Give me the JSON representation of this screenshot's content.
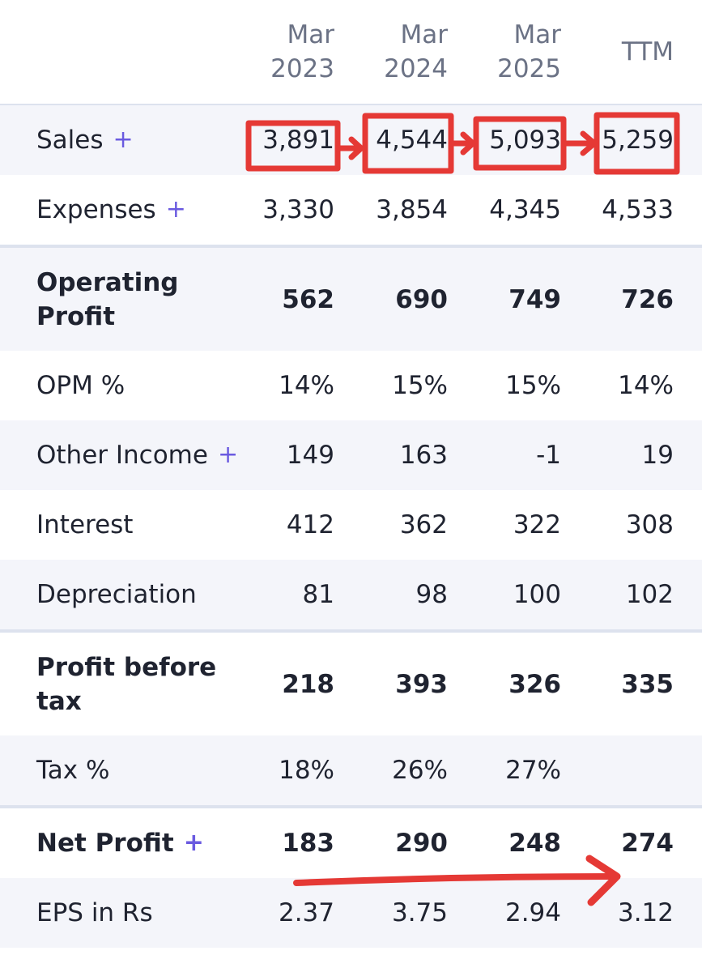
{
  "columns": [
    {
      "line1": "Mar",
      "line2": "2023"
    },
    {
      "line1": "Mar",
      "line2": "2024"
    },
    {
      "line1": "Mar",
      "line2": "2025"
    },
    {
      "line1": "",
      "line2": "TTM"
    }
  ],
  "rows": [
    {
      "label": "Sales",
      "plus": "+",
      "values": [
        "3,891",
        "4,544",
        "5,093",
        "5,259"
      ]
    },
    {
      "label": "Expenses",
      "plus": "+",
      "values": [
        "3,330",
        "3,854",
        "4,345",
        "4,533"
      ]
    },
    {
      "label": "Operating Profit",
      "plus": "",
      "values": [
        "562",
        "690",
        "749",
        "726"
      ]
    },
    {
      "label": "OPM %",
      "plus": "",
      "values": [
        "14%",
        "15%",
        "15%",
        "14%"
      ]
    },
    {
      "label": "Other Income",
      "plus": "+",
      "values": [
        "149",
        "163",
        "-1",
        "19"
      ]
    },
    {
      "label": "Interest",
      "plus": "",
      "values": [
        "412",
        "362",
        "322",
        "308"
      ]
    },
    {
      "label": "Depreciation",
      "plus": "",
      "values": [
        "81",
        "98",
        "100",
        "102"
      ]
    },
    {
      "label": "Profit before tax",
      "plus": "",
      "values": [
        "218",
        "393",
        "326",
        "335"
      ]
    },
    {
      "label": "Tax %",
      "plus": "",
      "values": [
        "18%",
        "26%",
        "27%",
        ""
      ]
    },
    {
      "label": "Net Profit",
      "plus": "+",
      "values": [
        "183",
        "290",
        "248",
        "274"
      ]
    },
    {
      "label": "EPS in Rs",
      "plus": "",
      "values": [
        "2.37",
        "3.75",
        "2.94",
        "3.12"
      ]
    }
  ],
  "colors": {
    "expand_plus": "#6a5ae0",
    "annotation": "#e53935"
  }
}
